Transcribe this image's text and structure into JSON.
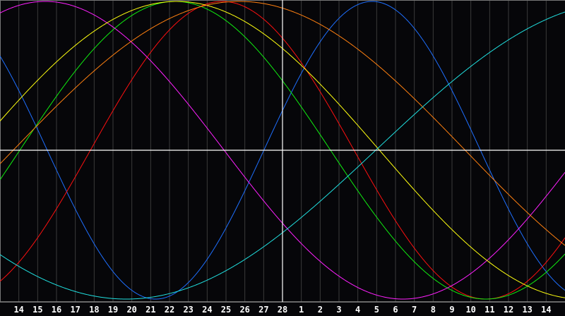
{
  "chart_data": {
    "type": "line",
    "title": "",
    "xlabel": "",
    "ylabel": "",
    "x_labels": [
      "14",
      "15",
      "16",
      "17",
      "18",
      "19",
      "20",
      "21",
      "22",
      "23",
      "24",
      "25",
      "26",
      "27",
      "28",
      "1",
      "2",
      "3",
      "4",
      "5",
      "6",
      "7",
      "8",
      "9",
      "10",
      "11",
      "12",
      "13",
      "14"
    ],
    "today_label_index": 14,
    "ylim": [
      -1,
      1
    ],
    "grid": "vertical lines at each day",
    "legend": "none",
    "series": [
      {
        "color": "#1e6fff",
        "period_days": 23,
        "peak_day_index": 18.76
      },
      {
        "color": "#ff1010",
        "period_days": 28,
        "peak_day_index": 10.8
      },
      {
        "color": "#10ee10",
        "period_days": 33,
        "peak_day_index": 8.3
      },
      {
        "color": "#ff20ff",
        "period_days": 38,
        "peak_day_index": 1.4
      },
      {
        "color": "#ffff10",
        "period_days": 43,
        "peak_day_index": 8.4
      },
      {
        "color": "#ff8010",
        "period_days": 48,
        "peak_day_index": 11.7
      },
      {
        "color": "#20e0e0",
        "period_days": 53,
        "peak_day_index": 32.2
      }
    ],
    "colors": {
      "background": "#060609",
      "grid": "#3a3a3a",
      "axis": "#ffffff"
    }
  }
}
